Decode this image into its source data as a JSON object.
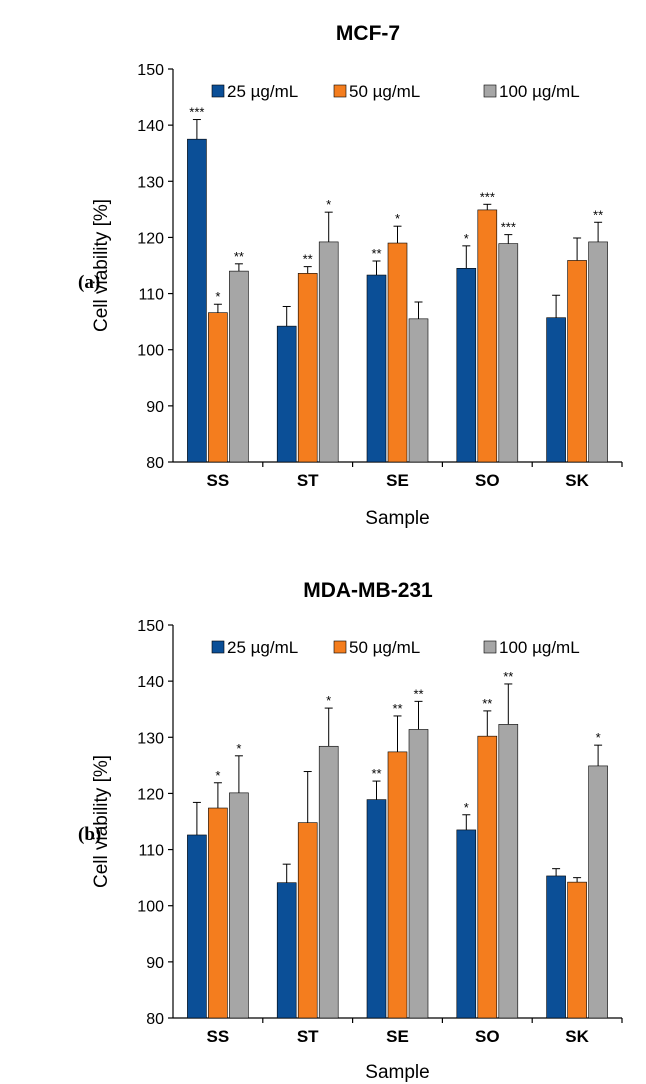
{
  "chart_data": [
    {
      "type": "bar",
      "panel_label": "(a)",
      "title": "MCF-7",
      "xlabel": "Sample",
      "ylabel": "Cell viability [%]",
      "ylim": [
        80,
        150
      ],
      "yticks": [
        80,
        90,
        100,
        110,
        120,
        130,
        140,
        150
      ],
      "categories": [
        "SS",
        "ST",
        "SE",
        "SO",
        "SK"
      ],
      "legend_position": "top",
      "series": [
        {
          "name": "25 µg/mL",
          "color": "#0b4f97",
          "values": [
            137.5,
            104.2,
            113.3,
            114.5,
            105.7
          ],
          "errors": [
            3.5,
            3.5,
            2.5,
            4.0,
            4.0
          ],
          "significance": [
            "***",
            "",
            "**",
            "*",
            ""
          ]
        },
        {
          "name": "50 µg/mL",
          "color": "#f47d1e",
          "values": [
            106.6,
            113.6,
            119.0,
            124.9,
            115.9
          ],
          "errors": [
            1.5,
            1.2,
            3.0,
            1.0,
            4.0
          ],
          "significance": [
            "*",
            "**",
            "*",
            "***",
            ""
          ]
        },
        {
          "name": "100 µg/mL",
          "color": "#a6a6a6",
          "values": [
            114.0,
            119.2,
            105.5,
            118.9,
            119.2
          ],
          "errors": [
            1.3,
            5.3,
            3.0,
            1.6,
            3.5
          ],
          "significance": [
            "**",
            "*",
            "",
            "***",
            "**"
          ]
        }
      ]
    },
    {
      "type": "bar",
      "panel_label": "(b)",
      "title": "MDA-MB-231",
      "xlabel": "Sample",
      "ylabel": "Cell viability [%]",
      "ylim": [
        80,
        150
      ],
      "yticks": [
        80,
        90,
        100,
        110,
        120,
        130,
        140,
        150
      ],
      "categories": [
        "SS",
        "ST",
        "SE",
        "SO",
        "SK"
      ],
      "legend_position": "top",
      "series": [
        {
          "name": "25 µg/mL",
          "color": "#0b4f97",
          "values": [
            112.6,
            104.1,
            118.9,
            113.5,
            105.3
          ],
          "errors": [
            5.8,
            3.3,
            3.3,
            2.7,
            1.3
          ],
          "significance": [
            "",
            "",
            "**",
            "*",
            ""
          ]
        },
        {
          "name": "50 µg/mL",
          "color": "#f47d1e",
          "values": [
            117.4,
            114.8,
            127.4,
            130.2,
            104.2
          ],
          "errors": [
            4.5,
            9.1,
            6.4,
            4.5,
            0.8
          ],
          "significance": [
            "*",
            "",
            "**",
            "**",
            ""
          ]
        },
        {
          "name": "100 µg/mL",
          "color": "#a6a6a6",
          "values": [
            120.1,
            128.4,
            131.4,
            132.3,
            124.9
          ],
          "errors": [
            6.6,
            6.8,
            5.0,
            7.2,
            3.7
          ],
          "significance": [
            "*",
            "*",
            "**",
            "**",
            "*"
          ]
        }
      ]
    }
  ]
}
